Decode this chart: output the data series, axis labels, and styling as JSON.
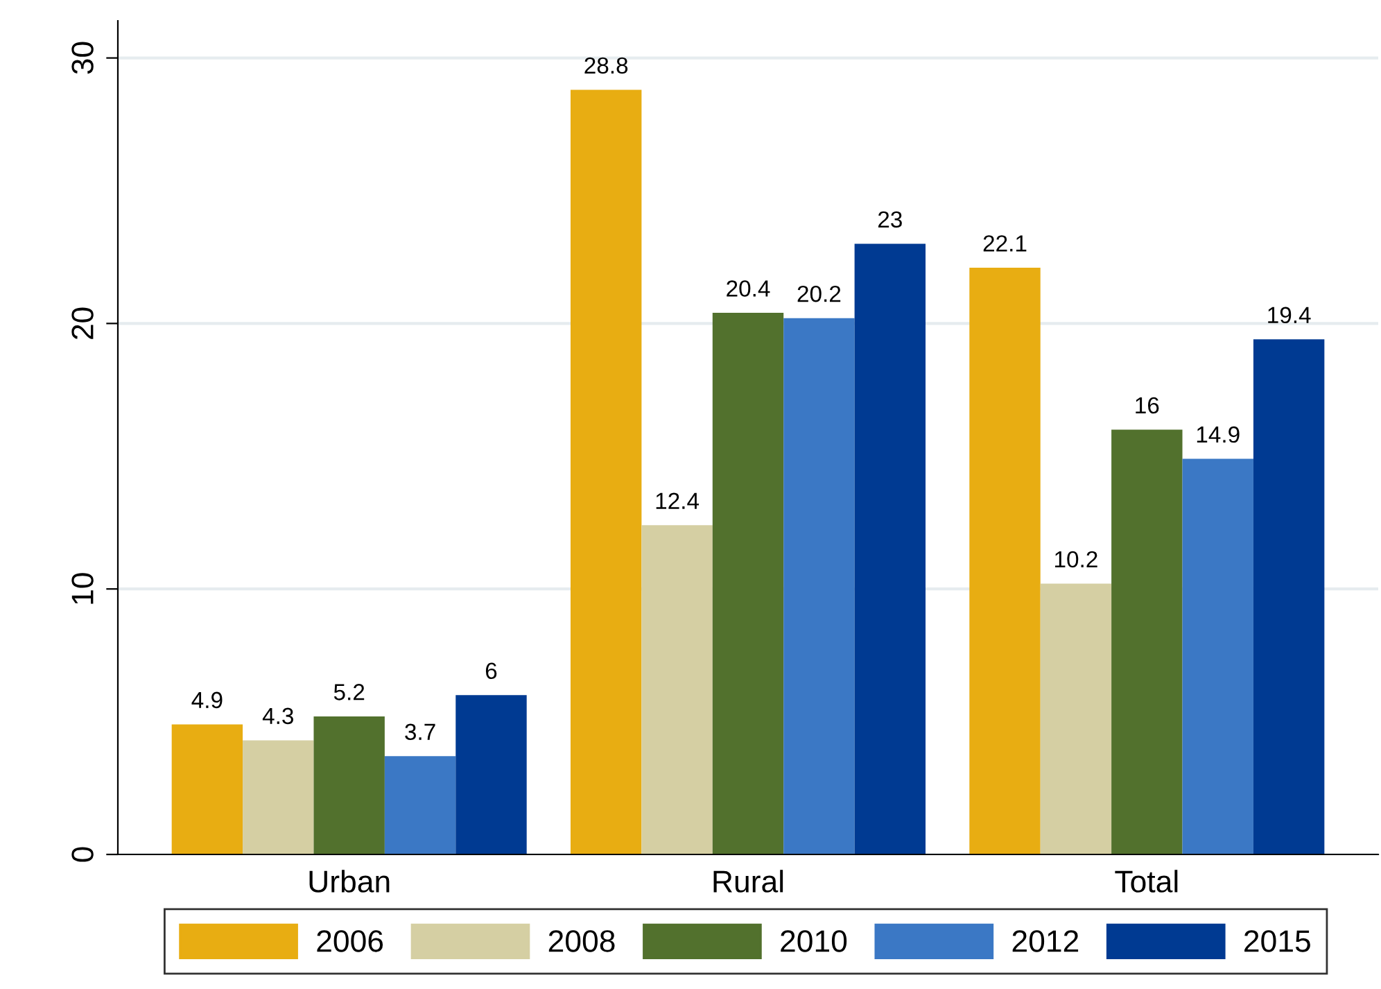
{
  "chart_data": {
    "type": "bar",
    "categories": [
      "Urban",
      "Rural",
      "Total"
    ],
    "series": [
      {
        "name": "2006",
        "color": "#e8ad12",
        "values": [
          4.9,
          28.8,
          22.1
        ]
      },
      {
        "name": "2008",
        "color": "#d5cfa3",
        "values": [
          4.3,
          12.4,
          10.2
        ]
      },
      {
        "name": "2010",
        "color": "#52712d",
        "values": [
          5.2,
          20.4,
          16
        ]
      },
      {
        "name": "2012",
        "color": "#3b78c5",
        "values": [
          3.7,
          20.2,
          14.9
        ]
      },
      {
        "name": "2015",
        "color": "#003a92",
        "values": [
          6,
          23,
          19.4
        ]
      }
    ],
    "ylim": [
      0,
      31.4
    ],
    "yticks": [
      0,
      10,
      20,
      30
    ],
    "grid": "y",
    "legend": "bottom",
    "data_labels": true
  }
}
